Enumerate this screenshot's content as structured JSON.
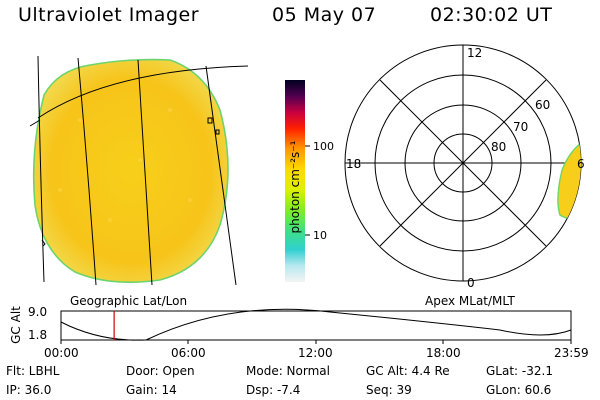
{
  "header": {
    "instrument": "Ultraviolet Imager",
    "date": "05 May 07",
    "time": "02:30:02 UT"
  },
  "colorbar": {
    "unit_label": "photon cm⁻²s⁻¹",
    "ticks": [
      "100",
      "10"
    ]
  },
  "polar": {
    "lat_labels": [
      "80",
      "70",
      "60"
    ],
    "mlt_labels": [
      "12",
      "18",
      "6",
      "0"
    ],
    "caption": "Apex MLat/MLT"
  },
  "geo": {
    "caption": "Geographic Lat/Lon"
  },
  "timeline": {
    "axis_label": "GC Alt",
    "ymax_label": "9.0",
    "ymin_label": "1.8",
    "ticks": [
      "00:00",
      "06:00",
      "12:00",
      "18:00",
      "23:59"
    ],
    "current_marker_hour": 2.5
  },
  "status": {
    "filter": "Flt: LBHL",
    "ip": "IP: 36.0",
    "door": "Door: Open",
    "gain": "Gain: 14",
    "mode": "Mode: Normal",
    "dsp": "Dsp:   -7.4",
    "gc_alt": "GC Alt: 4.4 Re",
    "seq": "Seq: 39",
    "glat": "GLat: -32.1",
    "glon": "GLon:  60.6"
  }
}
